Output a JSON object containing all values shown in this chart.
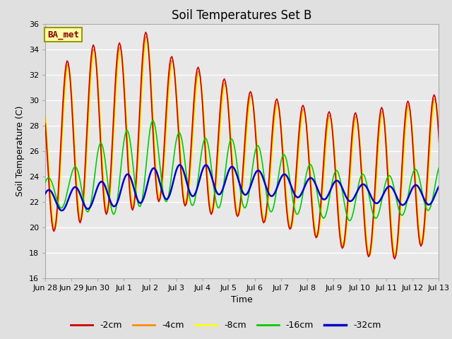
{
  "title": "Soil Temperatures Set B",
  "xlabel": "Time",
  "ylabel": "Soil Temperature (C)",
  "legend_label": "BA_met",
  "ylim": [
    16,
    36
  ],
  "yticks": [
    16,
    18,
    20,
    22,
    24,
    26,
    28,
    30,
    32,
    34,
    36
  ],
  "xlim": [
    0,
    15
  ],
  "series_labels": [
    "-2cm",
    "-4cm",
    "-8cm",
    "-16cm",
    "-32cm"
  ],
  "series_colors": [
    "#cc0000",
    "#ff8c00",
    "#ffff00",
    "#00cc00",
    "#0000cc"
  ],
  "series_linewidths": [
    1.2,
    1.2,
    1.2,
    1.2,
    1.8
  ],
  "bg_color": "#e8e8e8",
  "fig_color": "#e0e0e0",
  "grid_color": "#ffffff",
  "tick_labels": [
    "Jun 28",
    "Jun 29",
    "Jun 30",
    "Jul 1",
    "Jul 2",
    "Jul 3",
    "Jul 4",
    "Jul 5",
    "Jul 6",
    "Jul 7",
    "Jul 8",
    "Jul 9",
    "Jul 10",
    "Jul 11",
    "Jul 12",
    "Jul 13"
  ],
  "title_fontsize": 12,
  "axis_label_fontsize": 9,
  "tick_fontsize": 8,
  "ba_box_facecolor": "#ffffaa",
  "ba_box_edgecolor": "#999900",
  "ba_text_color": "#880000",
  "ba_fontsize": 9
}
